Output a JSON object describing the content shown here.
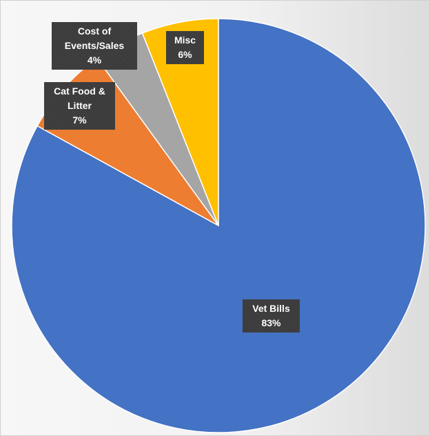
{
  "chart_data": {
    "type": "pie",
    "title": "",
    "slices": [
      {
        "label": "Vet Bills",
        "value": 83,
        "value_label": "83%",
        "color": "#4472C4"
      },
      {
        "label": "Cat Food & Litter",
        "value": 7,
        "value_label": "7%",
        "color": "#ED7D31"
      },
      {
        "label": "Cost of Events/Sales",
        "value": 4,
        "value_label": "4%",
        "color": "#A5A5A5"
      },
      {
        "label": "Misc",
        "value": 6,
        "value_label": "6%",
        "color": "#FFC000"
      }
    ],
    "start_angle": "12 o'clock",
    "direction": "clockwise",
    "legend": "none"
  }
}
